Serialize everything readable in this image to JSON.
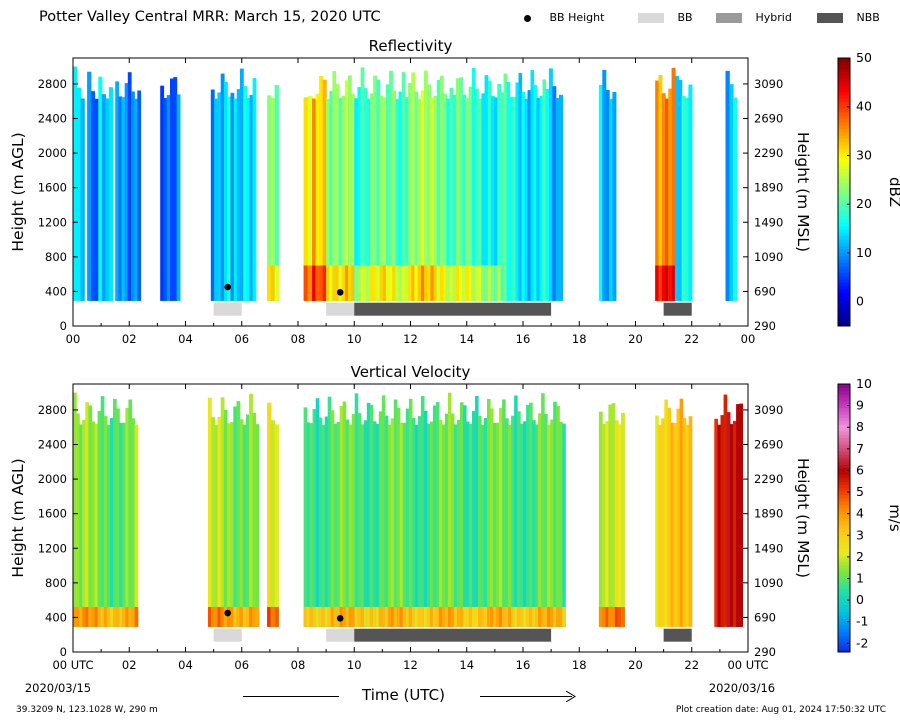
{
  "title": "Potter Valley Central MRR:  March 15, 2020 UTC",
  "legend": {
    "items": [
      {
        "label": "BB Height",
        "kind": "dot",
        "color": "#000000"
      },
      {
        "label": "BB",
        "kind": "bar",
        "color": "#d9d9d9"
      },
      {
        "label": "Hybrid",
        "kind": "bar",
        "color": "#9a9a9a"
      },
      {
        "label": "NBB",
        "kind": "bar",
        "color": "#555555"
      }
    ]
  },
  "footer": {
    "coords": "39.3209 N, 123.1028 W, 290 m",
    "created": "Plot creation date: Aug 01, 2024 17:50:32 UTC",
    "start_label": "00 UTC",
    "start_date": "2020/03/15",
    "end_label": "00 UTC",
    "end_date": "2020/03/16",
    "xlabel": "Time (UTC)"
  },
  "chart_data": [
    {
      "type": "heatmap",
      "title": "Reflectivity",
      "ylabel": "Height (m AGL)",
      "y2label": "Height (m MSL)",
      "xlim": [
        0,
        24
      ],
      "ylim": [
        0,
        3100
      ],
      "xticks": [
        "00",
        "02",
        "04",
        "06",
        "08",
        "10",
        "12",
        "14",
        "16",
        "18",
        "20",
        "22",
        "00"
      ],
      "yticks": [
        0,
        400,
        800,
        1200,
        1600,
        2000,
        2400,
        2800
      ],
      "y2ticks": [
        290,
        690,
        1090,
        1490,
        1890,
        2290,
        2690,
        3090
      ],
      "colorbar": {
        "label": "dBZ",
        "min": -5,
        "max": 50,
        "ticks": [
          0,
          10,
          20,
          30,
          40,
          50
        ]
      },
      "colormap": "jet",
      "data_bottom_m": 290,
      "data_top_m": 3000,
      "echo_segments": [
        {
          "start": 0.0,
          "end": 0.4,
          "level": 0.32
        },
        {
          "start": 0.5,
          "end": 0.9,
          "level": 0.18
        },
        {
          "start": 0.9,
          "end": 1.4,
          "level": 0.3
        },
        {
          "start": 1.5,
          "end": 2.4,
          "level": 0.3
        },
        {
          "start": 3.1,
          "end": 3.8,
          "level": 0.27
        },
        {
          "start": 4.9,
          "end": 5.6,
          "level": 0.33
        },
        {
          "start": 5.6,
          "end": 6.5,
          "level": 0.3
        },
        {
          "start": 6.9,
          "end": 7.3,
          "level": 0.45
        },
        {
          "start": 8.2,
          "end": 8.5,
          "level": 0.55
        },
        {
          "start": 8.5,
          "end": 9.0,
          "level": 0.68
        },
        {
          "start": 9.0,
          "end": 10.0,
          "level": 0.55
        },
        {
          "start": 10.0,
          "end": 11.8,
          "level": 0.45
        },
        {
          "start": 11.8,
          "end": 13.5,
          "level": 0.5
        },
        {
          "start": 13.5,
          "end": 15.2,
          "level": 0.42
        },
        {
          "start": 15.2,
          "end": 16.8,
          "level": 0.38
        },
        {
          "start": 16.8,
          "end": 17.4,
          "level": 0.3
        },
        {
          "start": 18.7,
          "end": 19.3,
          "level": 0.34
        },
        {
          "start": 20.7,
          "end": 21.4,
          "level": 0.78
        },
        {
          "start": 21.4,
          "end": 22.0,
          "level": 0.38
        },
        {
          "start": 23.2,
          "end": 23.6,
          "level": 0.3
        }
      ],
      "bb_height": [
        {
          "x": 5.5,
          "y": 450
        },
        {
          "x": 9.5,
          "y": 390
        }
      ],
      "bands": [
        {
          "kind": "BB",
          "start": 5.0,
          "end": 6.0
        },
        {
          "kind": "BB",
          "start": 9.0,
          "end": 10.0
        },
        {
          "kind": "NBB",
          "start": 10.0,
          "end": 17.0
        },
        {
          "kind": "NBB",
          "start": 21.0,
          "end": 22.0
        }
      ]
    },
    {
      "type": "heatmap",
      "title": "Vertical Velocity",
      "ylabel": "Height (m AGL)",
      "y2label": "Height (m MSL)",
      "xlim": [
        0,
        24
      ],
      "ylim": [
        0,
        3100
      ],
      "xticks": [
        "00 UTC",
        "02",
        "04",
        "06",
        "08",
        "10",
        "12",
        "14",
        "16",
        "18",
        "20",
        "22",
        "00 UTC"
      ],
      "yticks": [
        0,
        400,
        800,
        1200,
        1600,
        2000,
        2400,
        2800
      ],
      "y2ticks": [
        290,
        690,
        1090,
        1490,
        1890,
        2290,
        2690,
        3090
      ],
      "colorbar": {
        "label": "m/s",
        "min": -2.4,
        "max": 10,
        "ticks": [
          -2,
          -1,
          0,
          1,
          2,
          3,
          4,
          5,
          6,
          7,
          8,
          9,
          10
        ]
      },
      "colormap": "velocity",
      "data_bottom_m": 290,
      "data_top_m": 3000,
      "echo_segments": [
        {
          "start": 0.0,
          "end": 2.3,
          "level": 1.2
        },
        {
          "start": 4.8,
          "end": 6.6,
          "level": 1.5
        },
        {
          "start": 6.9,
          "end": 7.3,
          "level": 2.0
        },
        {
          "start": 8.2,
          "end": 17.5,
          "level": 0.9
        },
        {
          "start": 18.7,
          "end": 19.6,
          "level": 2.3
        },
        {
          "start": 20.7,
          "end": 22.0,
          "level": 3.0
        },
        {
          "start": 22.8,
          "end": 23.8,
          "level": 5.5
        }
      ],
      "bb_height": [
        {
          "x": 5.5,
          "y": 450
        },
        {
          "x": 9.5,
          "y": 390
        }
      ],
      "bands": [
        {
          "kind": "BB",
          "start": 5.0,
          "end": 6.0
        },
        {
          "kind": "BB",
          "start": 9.0,
          "end": 10.0
        },
        {
          "kind": "NBB",
          "start": 10.0,
          "end": 17.0
        },
        {
          "kind": "NBB",
          "start": 21.0,
          "end": 22.0
        }
      ]
    }
  ]
}
